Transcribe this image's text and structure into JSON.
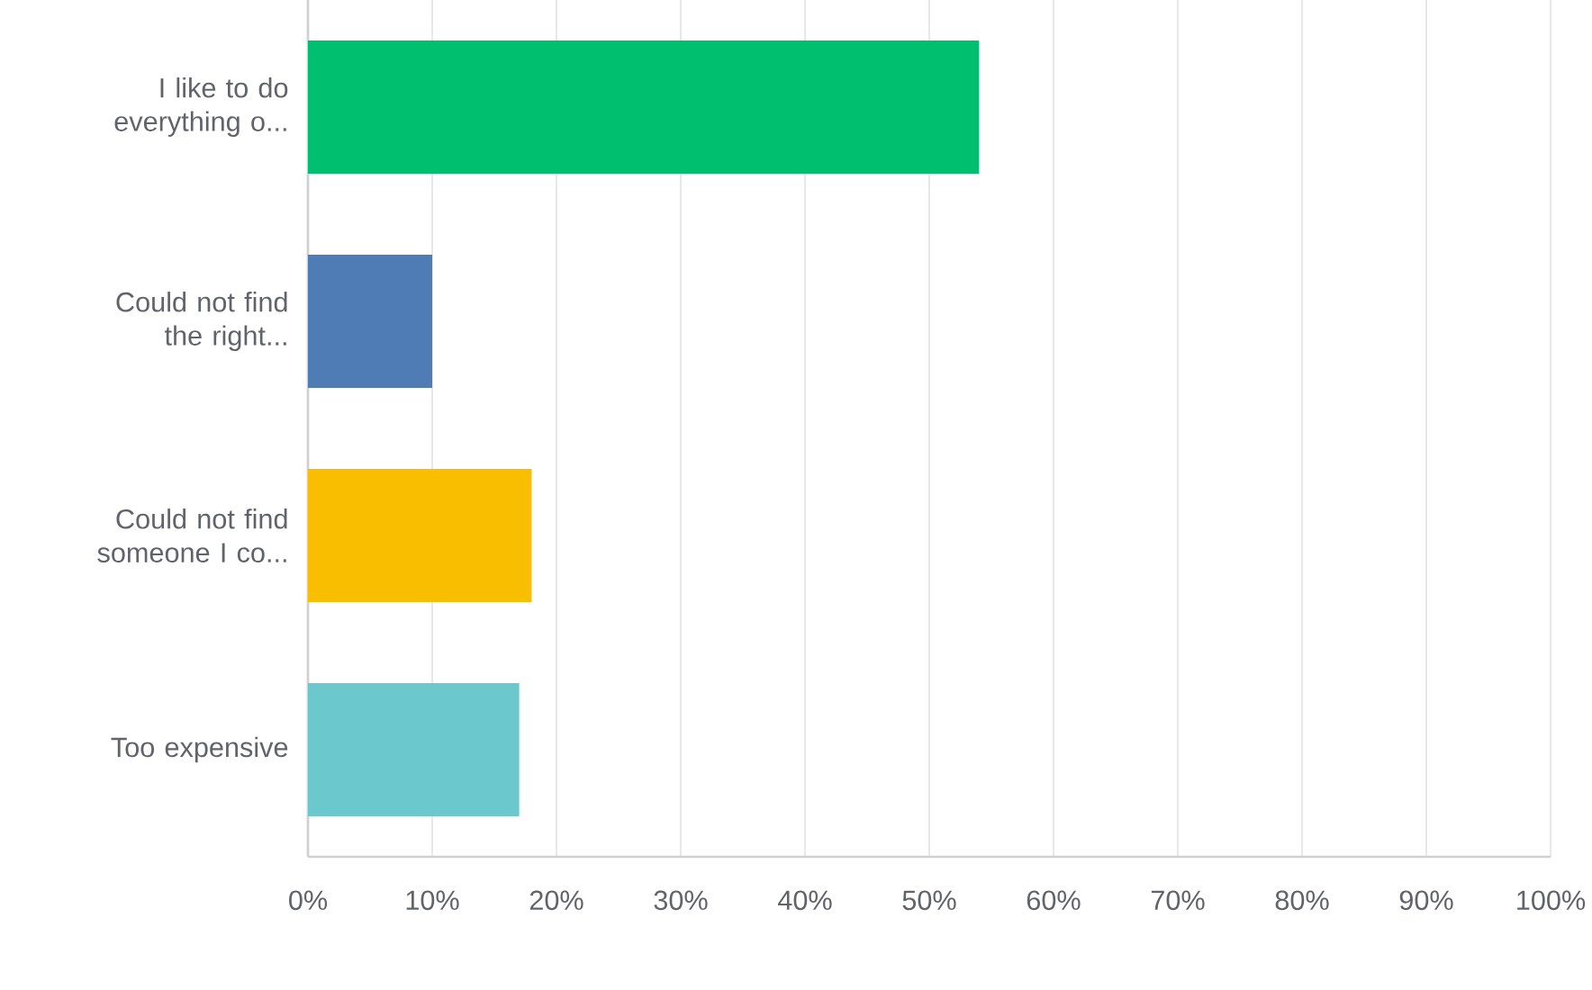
{
  "chart_data": {
    "type": "bar",
    "orientation": "horizontal",
    "categories": [
      "I like to do everything o...",
      "Could not find the right...",
      "Could not find someone I co...",
      "Too expensive"
    ],
    "values": [
      54,
      10,
      18,
      17
    ],
    "colors": [
      "#00bf6f",
      "#507cb6",
      "#f9be00",
      "#6bc8cd"
    ],
    "xlim": [
      0,
      100
    ],
    "xticks": [
      {
        "value": 0,
        "label": "0%"
      },
      {
        "value": 10,
        "label": "10%"
      },
      {
        "value": 20,
        "label": "20%"
      },
      {
        "value": 30,
        "label": "30%"
      },
      {
        "value": 40,
        "label": "40%"
      },
      {
        "value": 50,
        "label": "50%"
      },
      {
        "value": 60,
        "label": "60%"
      },
      {
        "value": 70,
        "label": "70%"
      },
      {
        "value": 80,
        "label": "80%"
      },
      {
        "value": 90,
        "label": "90%"
      },
      {
        "value": 100,
        "label": "100%"
      }
    ],
    "grid": "x"
  }
}
